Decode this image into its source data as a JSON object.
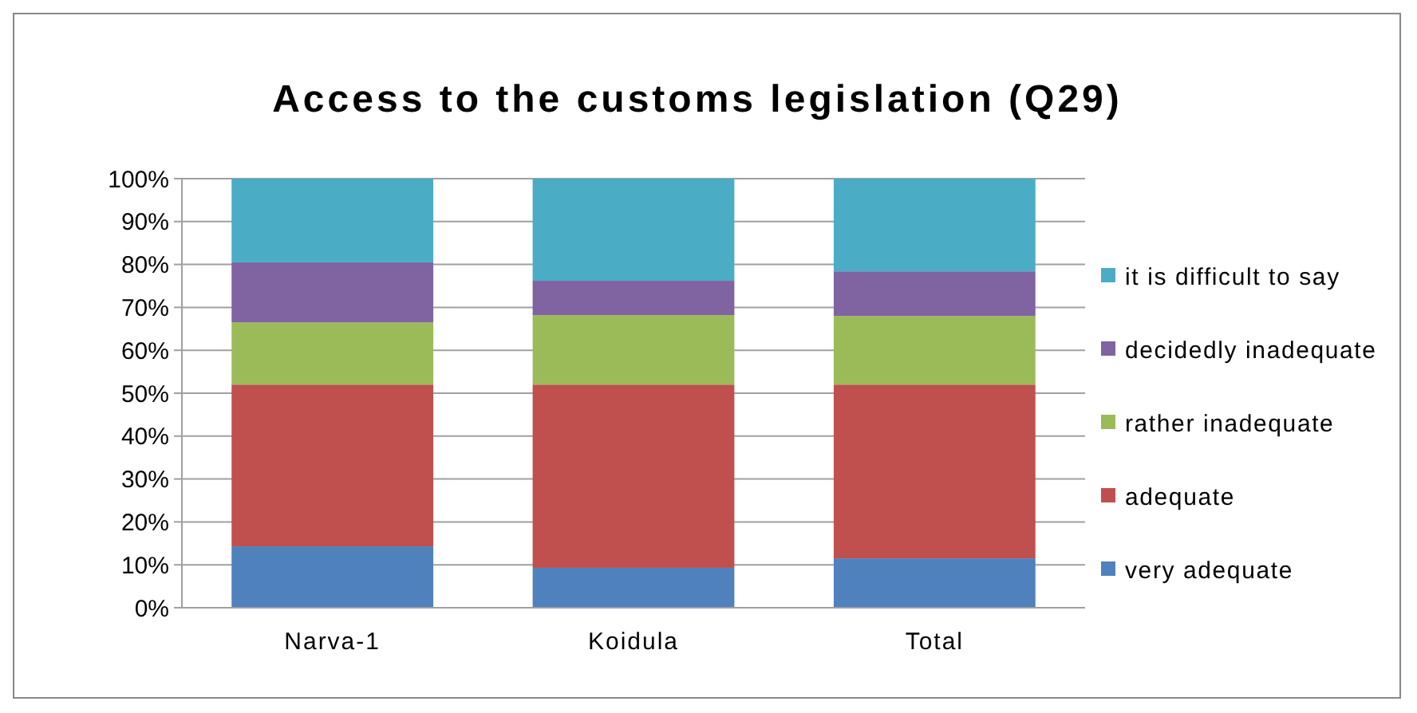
{
  "chart_data": {
    "type": "bar",
    "title": "Access to the customs legislation (Q29)",
    "stacked": true,
    "categories": [
      "Narva-1",
      "Koidula",
      "Total"
    ],
    "series": [
      {
        "name": "very adequate",
        "color": "#4f81bd",
        "values": [
          14.3,
          9.3,
          11.5
        ]
      },
      {
        "name": "adequate",
        "color": "#c0504d",
        "values": [
          37.7,
          42.7,
          40.5
        ]
      },
      {
        "name": "rather inadequate",
        "color": "#9bbb59",
        "values": [
          14.5,
          16.2,
          16
        ]
      },
      {
        "name": "decidedly inadequate",
        "color": "#8064a2",
        "values": [
          14,
          8,
          10.4
        ]
      },
      {
        "name": "it is difficult to say",
        "color": "#4bacc6",
        "values": [
          19.5,
          23.8,
          21.6
        ]
      }
    ],
    "ylim": [
      0,
      100
    ],
    "yticks": [
      {
        "value": 0,
        "label": "0%"
      },
      {
        "value": 10,
        "label": "10%"
      },
      {
        "value": 20,
        "label": "20%"
      },
      {
        "value": 30,
        "label": "30%"
      },
      {
        "value": 40,
        "label": "40%"
      },
      {
        "value": 50,
        "label": "50%"
      },
      {
        "value": 60,
        "label": "60%"
      },
      {
        "value": 70,
        "label": "70%"
      },
      {
        "value": 80,
        "label": "80%"
      },
      {
        "value": 90,
        "label": "90%"
      },
      {
        "value": 100,
        "label": "100%"
      }
    ],
    "grid": "y",
    "legend": "right"
  }
}
